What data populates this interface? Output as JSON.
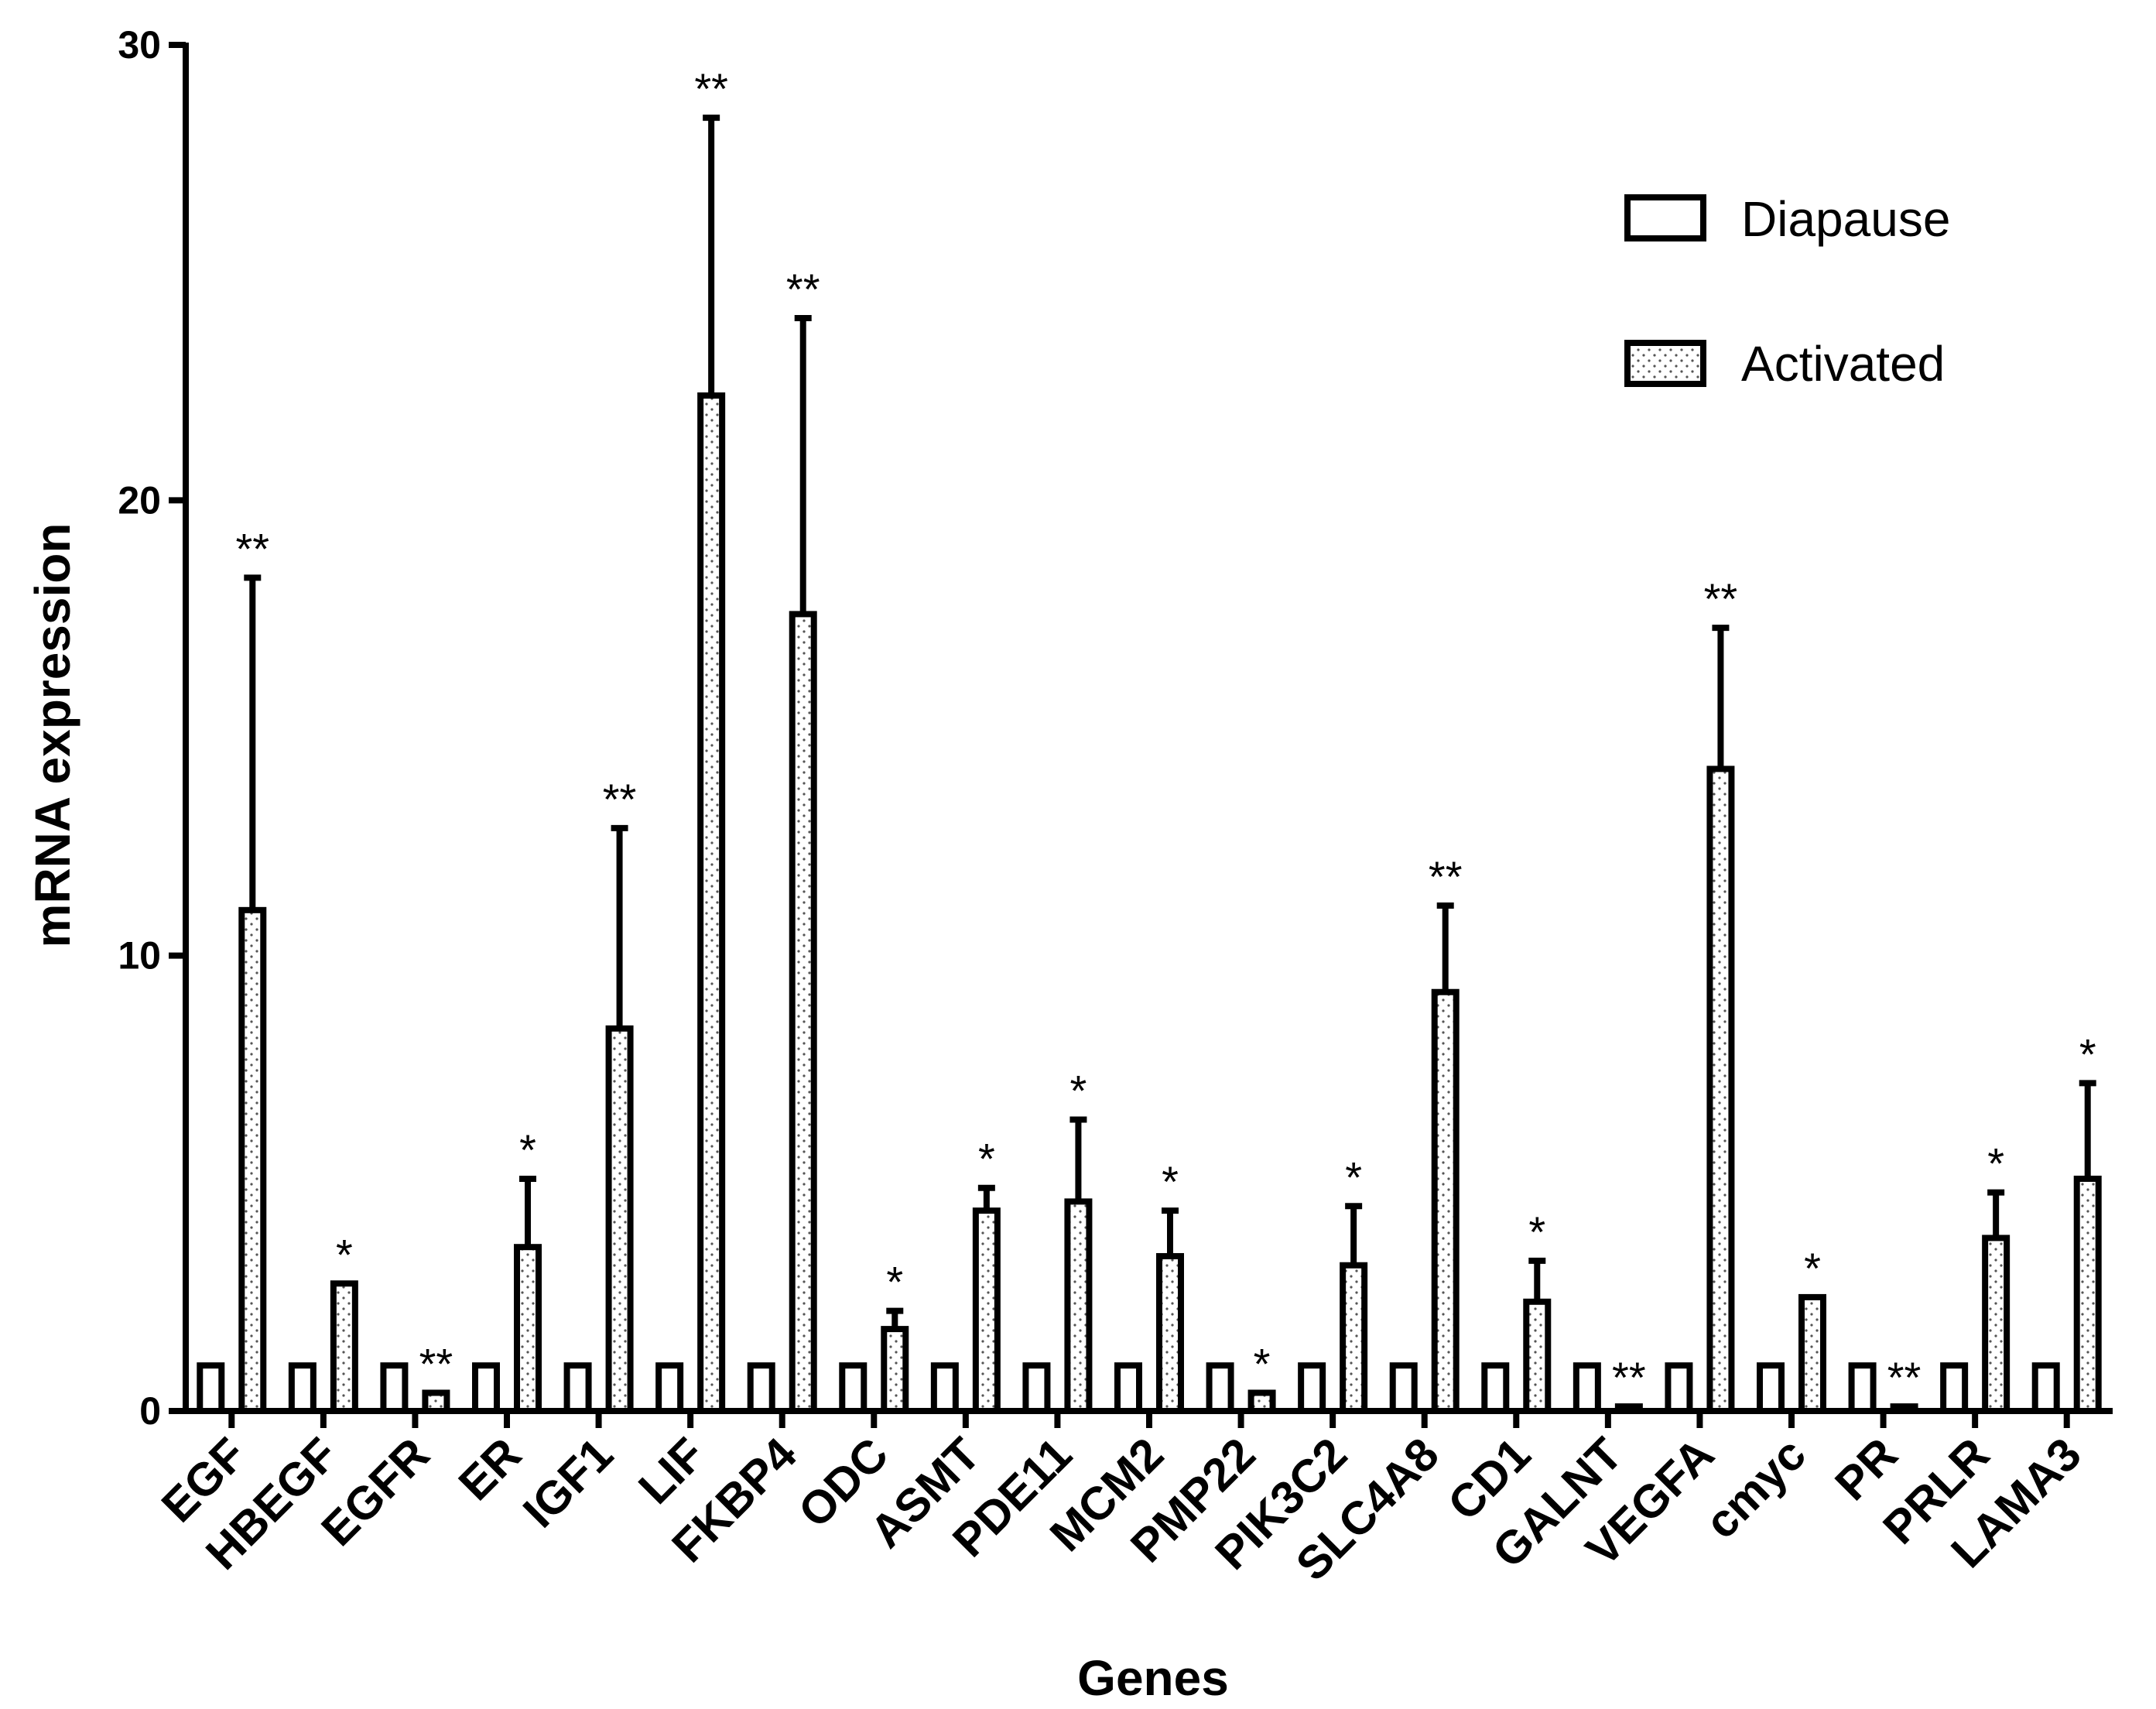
{
  "chart_data": {
    "type": "bar",
    "title": "",
    "xlabel": "Genes",
    "ylabel": "mRNA expression",
    "ylim": [
      0,
      30
    ],
    "yticks": [
      0,
      10,
      20,
      30
    ],
    "grid": false,
    "legend_position": "top-right",
    "categories": [
      "EGF",
      "HBEGF",
      "EGFR",
      "ER",
      "IGF1",
      "LIF",
      "FKBP4",
      "ODC",
      "ASMT",
      "PDE11",
      "MCM2",
      "PMP22",
      "PIK3C2",
      "SLC4A8",
      "CD1",
      "GALNT",
      "VEGFA",
      "cmyc",
      "PR",
      "PRLR",
      "LAMA3"
    ],
    "series": [
      {
        "name": "Diapause",
        "pattern": "open",
        "values": [
          1,
          1,
          1,
          1,
          1,
          1,
          1,
          1,
          1,
          1,
          1,
          1,
          1,
          1,
          1,
          1,
          1,
          1,
          1,
          1,
          1
        ]
      },
      {
        "name": "Activated",
        "pattern": "dotted",
        "values": [
          11.0,
          2.8,
          0.4,
          3.6,
          8.4,
          22.3,
          17.5,
          1.8,
          4.4,
          4.6,
          3.4,
          0.4,
          3.2,
          9.2,
          2.4,
          0.1,
          14.1,
          2.5,
          0.1,
          3.8,
          5.1
        ],
        "error_upper": [
          18.3,
          2.8,
          0.4,
          5.1,
          12.8,
          28.4,
          24.0,
          2.2,
          4.9,
          6.4,
          4.4,
          0.4,
          4.5,
          11.1,
          3.3,
          0.1,
          17.2,
          2.5,
          0.1,
          4.8,
          7.2
        ],
        "significance": [
          "**",
          "*",
          "**",
          "*",
          "**",
          "**",
          "**",
          "*",
          "*",
          "*",
          "*",
          "*",
          "*",
          "**",
          "*",
          "**",
          "**",
          "*",
          "**",
          "*",
          "*"
        ]
      }
    ]
  },
  "colors": {
    "axis": "#000000",
    "bar_fill": "#ffffff",
    "dot": "#555555"
  }
}
